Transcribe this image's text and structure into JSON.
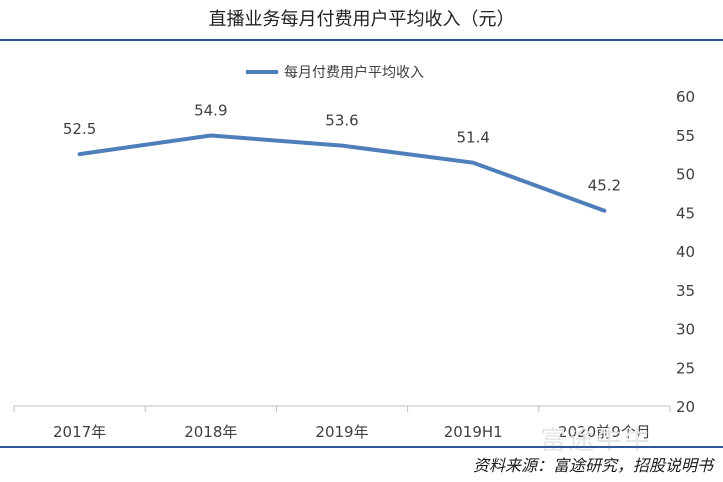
{
  "page": {
    "title": "直播业务每月付费用户平均收入（元）",
    "source": "资料来源：富途研究，招股说明书",
    "watermark": "富途牛牛"
  },
  "colors": {
    "line": "#4f7fba",
    "rule": "#2f5597",
    "axis": "#bfbfbf"
  },
  "chart_data": {
    "type": "line",
    "title": "直播业务每月付费用户平均收入（元）",
    "categories": [
      "2017年",
      "2018年",
      "2019年",
      "2019H1",
      "2020前9个月"
    ],
    "series": [
      {
        "name": "每月付费用户平均收入",
        "values": [
          52.5,
          54.9,
          53.6,
          51.4,
          45.2
        ]
      }
    ],
    "data_labels": [
      "52.5",
      "54.9",
      "53.6",
      "51.4",
      "45.2"
    ],
    "ylim": [
      20,
      60
    ],
    "yticks": [
      20,
      25,
      30,
      35,
      40,
      45,
      50,
      55,
      60
    ],
    "y_axis_side": "right",
    "grid": false,
    "legend": "top-center"
  }
}
